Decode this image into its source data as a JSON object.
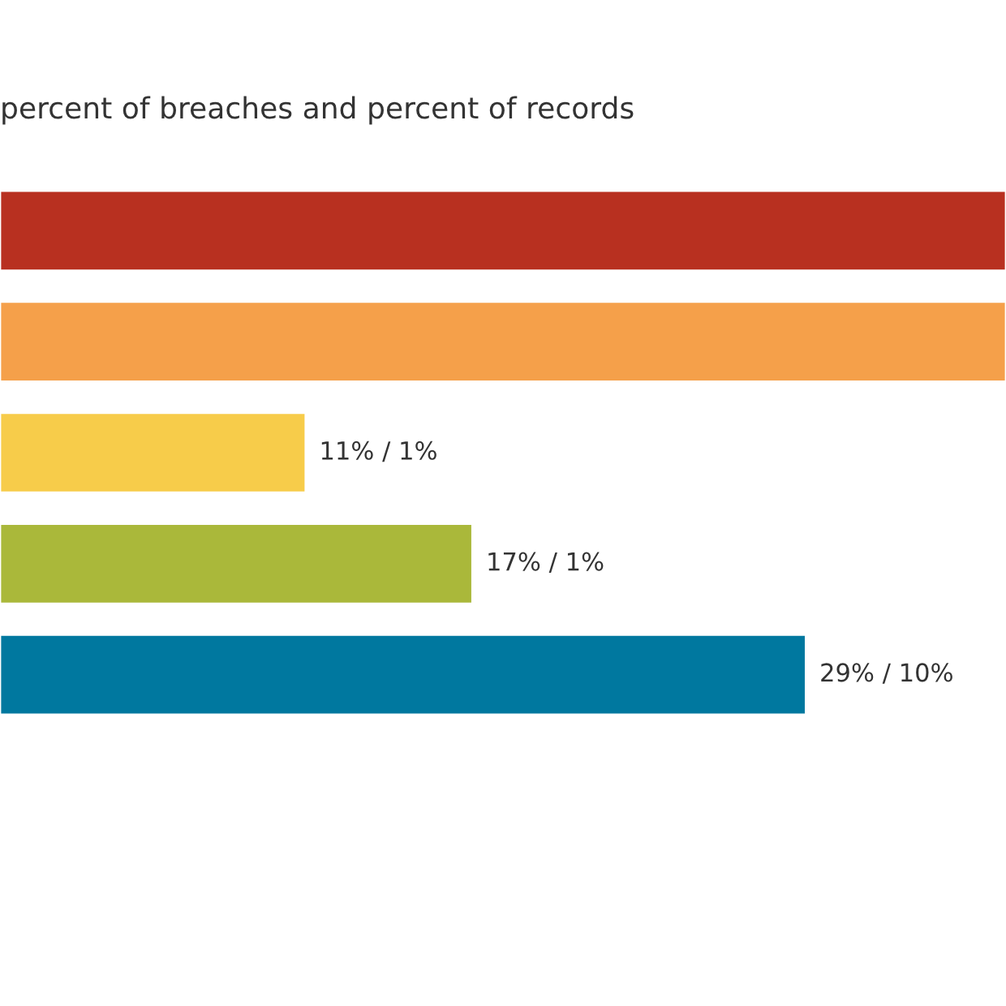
{
  "chart_data": {
    "type": "bar",
    "orientation": "horizontal",
    "title": "percent of breaches and percent of records",
    "categories": [
      null,
      null,
      null,
      null,
      null
    ],
    "values": [
      36.2,
      36.2,
      11,
      17,
      29
    ],
    "colors": [
      "#b83020",
      "#f5a04a",
      "#f7cc4a",
      "#aab83a",
      "#00789f"
    ],
    "value_labels": [
      null,
      null,
      "11% / 1%",
      "17% / 1%",
      "29% / 10%"
    ],
    "tick_labels": false,
    "grid": false,
    "legend": false
  }
}
